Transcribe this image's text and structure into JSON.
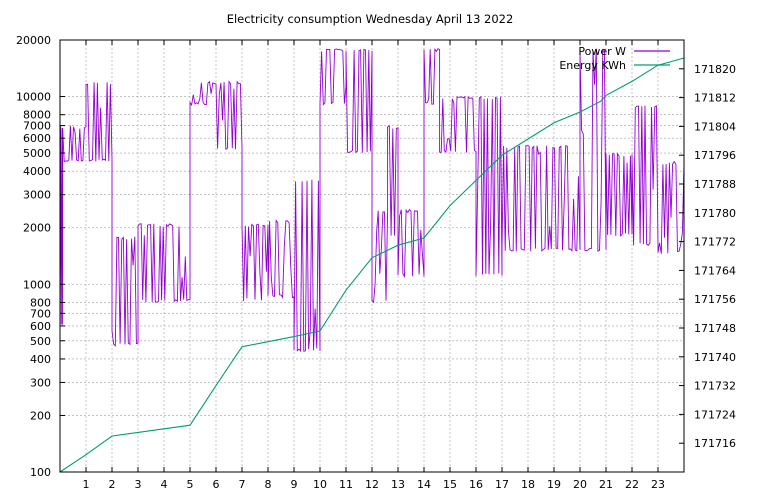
{
  "chart_data": {
    "type": "line",
    "title": "Electricity consumption Wednesday April 13 2022",
    "x_range": [
      0,
      24
    ],
    "x_ticks": [
      1,
      2,
      3,
      4,
      5,
      6,
      7,
      8,
      9,
      10,
      11,
      12,
      13,
      14,
      15,
      16,
      17,
      18,
      19,
      20,
      21,
      22,
      23
    ],
    "y_left": {
      "scale": "log",
      "range": [
        100,
        20000
      ],
      "ticks": [
        100,
        200,
        300,
        400,
        500,
        600,
        700,
        800,
        1000,
        2000,
        3000,
        4000,
        5000,
        6000,
        7000,
        8000,
        10000,
        20000
      ]
    },
    "y_right": {
      "scale": "linear",
      "range": [
        171708,
        171828
      ],
      "ticks": [
        171716,
        171724,
        171732,
        171740,
        171748,
        171756,
        171764,
        171772,
        171780,
        171788,
        171796,
        171804,
        171812,
        171820
      ]
    },
    "legend_position": "top-right",
    "grid": true,
    "series": [
      {
        "name": "Power W",
        "axis": "left",
        "color": "#9400d3",
        "segments": [
          {
            "x0": 0.0,
            "x1": 0.1,
            "low": 600,
            "high": 7000
          },
          {
            "x0": 0.1,
            "x1": 1.0,
            "low": 4500,
            "high": 7000
          },
          {
            "x0": 1.0,
            "x1": 2.0,
            "low": 4500,
            "high": 12000
          },
          {
            "x0": 2.0,
            "x1": 3.0,
            "low": 470,
            "high": 1800
          },
          {
            "x0": 3.0,
            "x1": 5.0,
            "low": 800,
            "high": 2100
          },
          {
            "x0": 5.0,
            "x1": 6.0,
            "low": 9000,
            "high": 12000
          },
          {
            "x0": 6.0,
            "x1": 7.0,
            "low": 5200,
            "high": 12000
          },
          {
            "x0": 7.0,
            "x1": 8.0,
            "low": 800,
            "high": 2100
          },
          {
            "x0": 8.0,
            "x1": 9.0,
            "low": 850,
            "high": 2200
          },
          {
            "x0": 9.0,
            "x1": 10.0,
            "low": 440,
            "high": 3600
          },
          {
            "x0": 10.0,
            "x1": 11.0,
            "low": 9000,
            "high": 18000
          },
          {
            "x0": 11.0,
            "x1": 12.0,
            "low": 5000,
            "high": 18000
          },
          {
            "x0": 12.0,
            "x1": 12.6,
            "low": 800,
            "high": 2500
          },
          {
            "x0": 12.6,
            "x1": 13.0,
            "low": 1800,
            "high": 7000
          },
          {
            "x0": 13.0,
            "x1": 14.0,
            "low": 1100,
            "high": 2500
          },
          {
            "x0": 14.0,
            "x1": 14.6,
            "low": 9000,
            "high": 18000
          },
          {
            "x0": 14.6,
            "x1": 16.0,
            "low": 5000,
            "high": 10000
          },
          {
            "x0": 16.0,
            "x1": 17.0,
            "low": 1100,
            "high": 10000
          },
          {
            "x0": 17.0,
            "x1": 20.0,
            "low": 1500,
            "high": 5500
          },
          {
            "x0": 20.0,
            "x1": 21.0,
            "low": 1500,
            "high": 18000
          },
          {
            "x0": 21.0,
            "x1": 22.0,
            "low": 1800,
            "high": 5000
          },
          {
            "x0": 22.0,
            "x1": 23.0,
            "low": 1600,
            "high": 9000
          },
          {
            "x0": 23.0,
            "x1": 24.0,
            "low": 1450,
            "high": 4500
          }
        ]
      },
      {
        "name": "Energy KWh",
        "axis": "right",
        "color": "#009e73",
        "x": [
          0,
          1,
          2,
          3,
          4,
          5,
          6,
          7,
          8,
          9,
          10,
          11,
          12,
          13,
          14,
          15,
          16,
          17,
          18,
          19,
          20,
          20.8,
          21,
          22,
          23,
          24
        ],
        "y": [
          171708.0,
          171712.8,
          171718.0,
          171719.0,
          171720.0,
          171721.0,
          171732.0,
          171742.8,
          171744.2,
          171745.6,
          171747.2,
          171758.5,
          171767.5,
          171771.0,
          171773.0,
          171782.0,
          171789.0,
          171796.0,
          171800.5,
          171805.0,
          171808.0,
          171811.0,
          171812.6,
          171816.5,
          171821.0,
          171823.0
        ]
      }
    ]
  }
}
